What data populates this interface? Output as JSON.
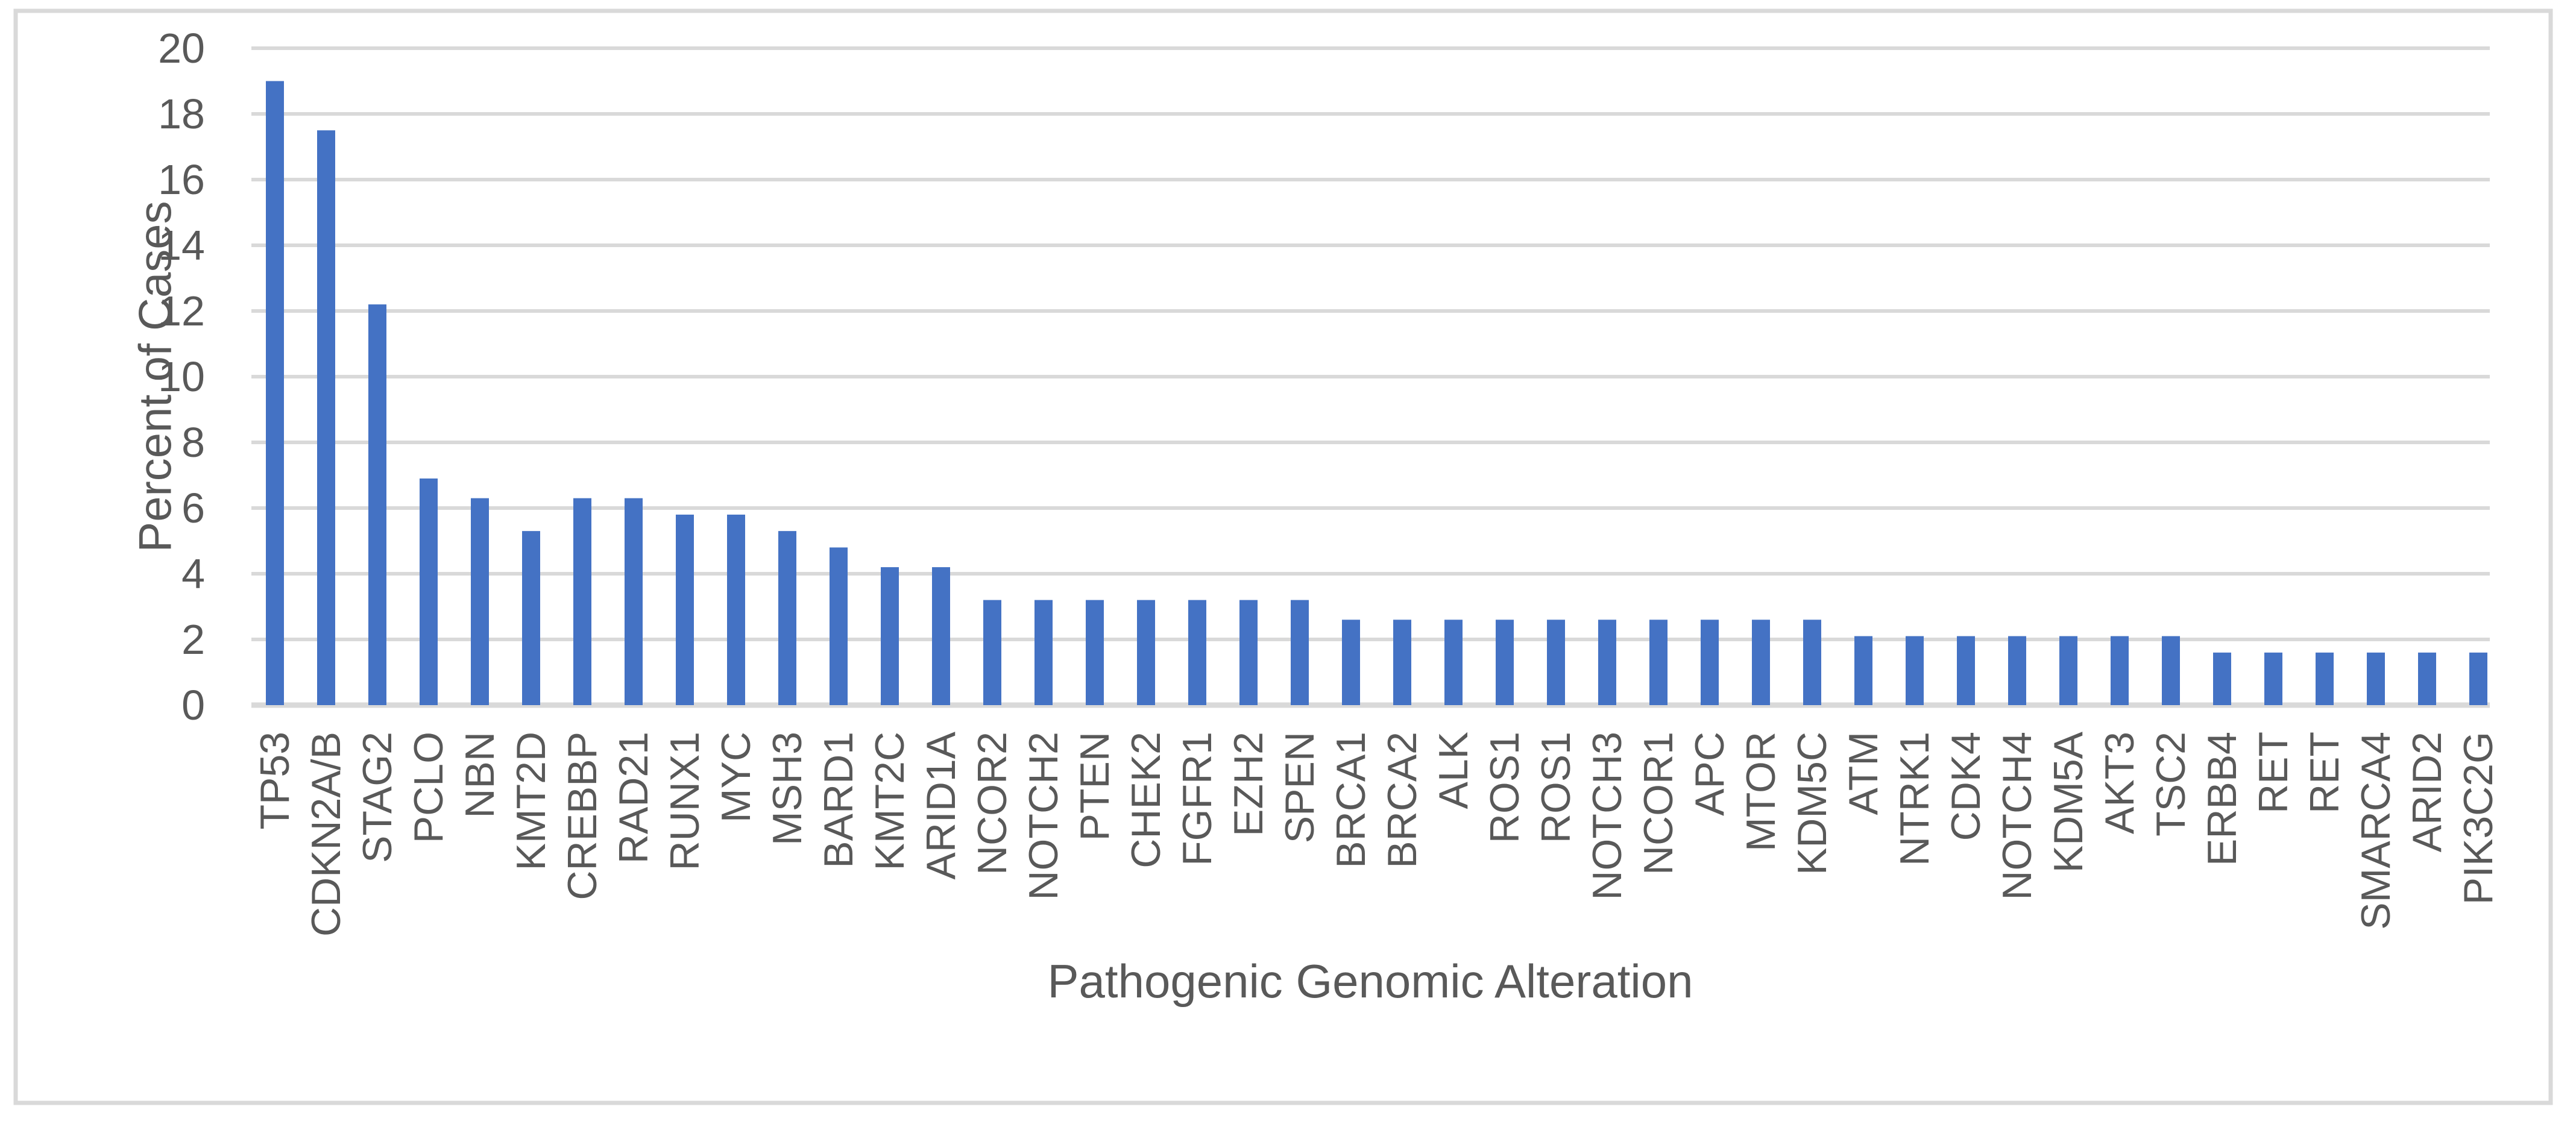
{
  "chart_data": {
    "type": "bar",
    "title": "",
    "xlabel": "Pathogenic Genomic Alteration",
    "ylabel": "Percent of Cases",
    "ylim": [
      0,
      20
    ],
    "yticks": [
      0,
      2,
      4,
      6,
      8,
      10,
      12,
      14,
      16,
      18,
      20
    ],
    "grid": true,
    "legend_position": "none",
    "bar_color": "#4472C4",
    "gridline_color": "#D9D9D9",
    "frame_color": "#D9D9D9",
    "text_color": "#595959",
    "categories": [
      "TP53",
      "CDKN2A/B",
      "STAG2",
      "PCLO",
      "NBN",
      "KMT2D",
      "CREBBP",
      "RAD21",
      "RUNX1",
      "MYC",
      "MSH3",
      "BARD1",
      "KMT2C",
      "ARID1A",
      "NCOR2",
      "NOTCH2",
      "PTEN",
      "CHEK2",
      "FGFR1",
      "EZH2",
      "SPEN",
      "BRCA1",
      "BRCA2",
      "ALK",
      "ROS1",
      "ROS1",
      "NOTCH3",
      "NCOR1",
      "APC",
      "MTOR",
      "KDM5C",
      "ATM",
      "NTRK1",
      "CDK4",
      "NOTCH4",
      "KDM5A",
      "AKT3",
      "TSC2",
      "ERBB4",
      "RET",
      "RET",
      "SMARCA4",
      "ARID2",
      "PIK3C2G"
    ],
    "values": [
      19.0,
      17.5,
      12.2,
      6.9,
      6.3,
      5.3,
      6.3,
      6.3,
      5.8,
      5.8,
      5.3,
      4.8,
      4.2,
      4.2,
      3.2,
      3.2,
      3.2,
      3.2,
      3.2,
      3.2,
      3.2,
      2.6,
      2.6,
      2.6,
      2.6,
      2.6,
      2.6,
      2.6,
      2.6,
      2.6,
      2.6,
      2.1,
      2.1,
      2.1,
      2.1,
      2.1,
      2.1,
      2.1,
      1.6,
      1.6,
      1.6,
      1.6,
      1.6,
      1.6
    ]
  }
}
